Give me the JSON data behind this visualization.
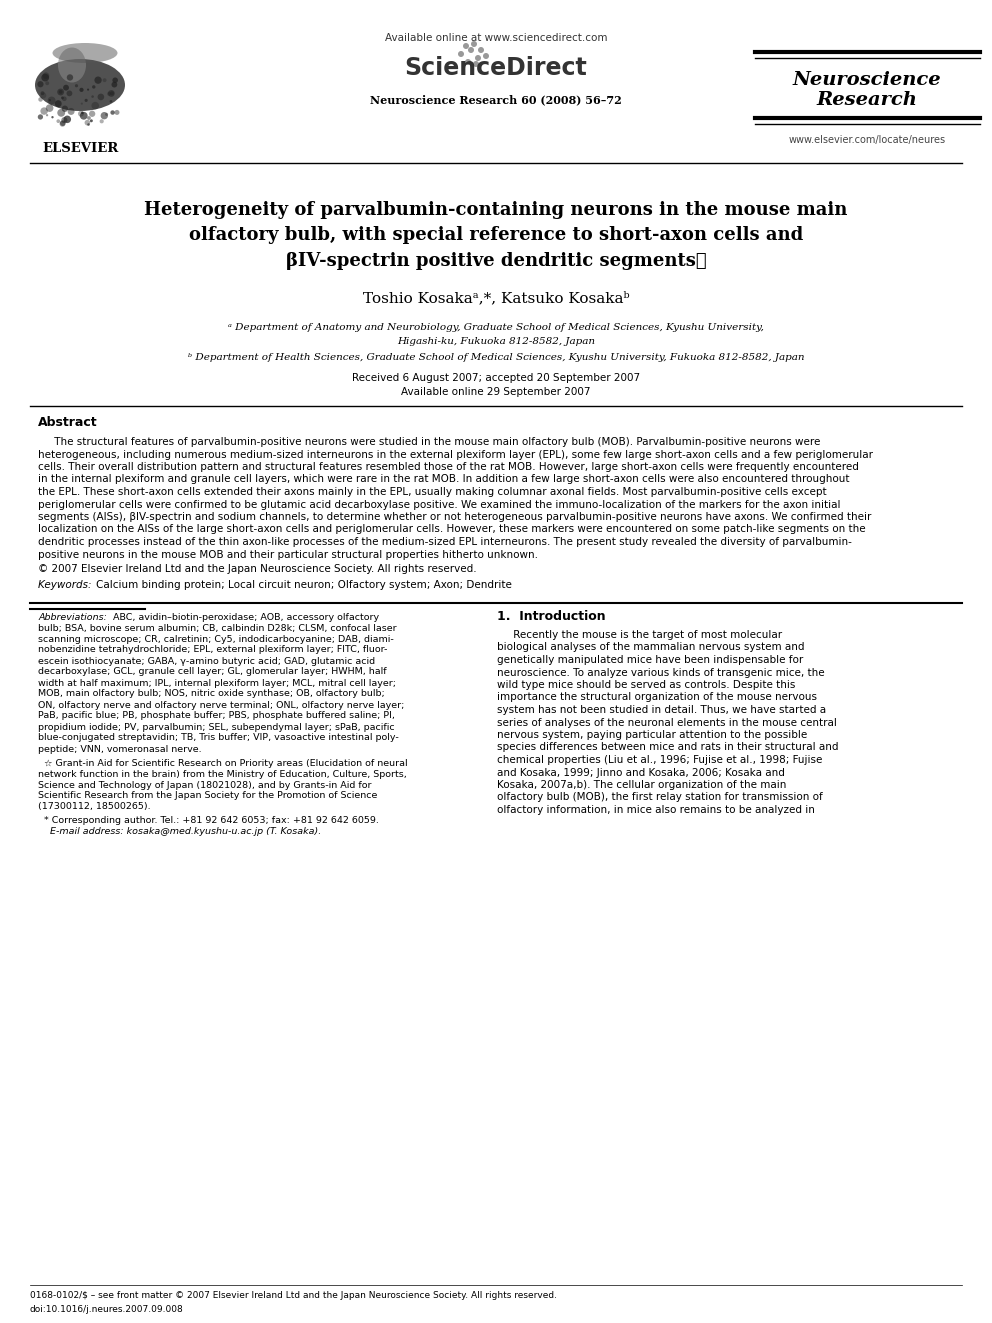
{
  "bg_color": "#ffffff",
  "page_width": 9.92,
  "page_height": 13.23,
  "dpi": 100,
  "header": {
    "available_online_text": "Available online at www.sciencedirect.com",
    "sciencedirect_text": "ScienceDirect",
    "journal_name_line1": "Neuroscience",
    "journal_name_line2": "Research",
    "journal_info": "Neuroscience Research 60 (2008) 56–72",
    "website": "www.elsevier.com/locate/neures",
    "elsevier_text": "ELSEVIER"
  },
  "title_line1": "Heterogeneity of parvalbumin-containing neurons in the mouse main",
  "title_line2": "olfactory bulb, with special reference to short-axon cells and",
  "title_line3": "βIV-spectrin positive dendritic segments☆",
  "author_line": "Toshio Kosakaᵃ,*, Katsuko Kosakaᵇ",
  "affil_a_line1": "ᵃ Department of Anatomy and Neurobiology, Graduate School of Medical Sciences, Kyushu University,",
  "affil_a_line2": "Higashi-ku, Fukuoka 812-8582, Japan",
  "affil_b_line1": "ᵇ Department of Health Sciences, Graduate School of Medical Sciences, Kyushu University, Fukuoka 812-8582, Japan",
  "received_line": "Received 6 August 2007; accepted 20 September 2007",
  "available_line": "Available online 29 September 2007",
  "abstract_title": "Abstract",
  "abstract_body_lines": [
    "     The structural features of parvalbumin-positive neurons were studied in the mouse main olfactory bulb (MOB). Parvalbumin-positive neurons were",
    "heterogeneous, including numerous medium-sized interneurons in the external plexiform layer (EPL), some few large short-axon cells and a few periglomerular",
    "cells. Their overall distribution pattern and structural features resembled those of the rat MOB. However, large short-axon cells were frequently encountered",
    "in the internal plexiform and granule cell layers, which were rare in the rat MOB. In addition a few large short-axon cells were also encountered throughout",
    "the EPL. These short-axon cells extended their axons mainly in the EPL, usually making columnar axonal fields. Most parvalbumin-positive cells except",
    "periglomerular cells were confirmed to be glutamic acid decarboxylase positive. We examined the immuno-localization of the markers for the axon initial",
    "segments (AISs), βIV-spectrin and sodium channels, to determine whether or not heterogeneous parvalbumin-positive neurons have axons. We confirmed their",
    "localization on the AISs of the large short-axon cells and periglomerular cells. However, these markers were encountered on some patch-like segments on the",
    "dendritic processes instead of the thin axon-like processes of the medium-sized EPL interneurons. The present study revealed the diversity of parvalbumin-",
    "positive neurons in the mouse MOB and their particular structural properties hitherto unknown."
  ],
  "copyright_line": "© 2007 Elsevier Ireland Ltd and the Japan Neuroscience Society. All rights reserved.",
  "keywords_line": "Keywords:  Calcium binding protein; Local circuit neuron; Olfactory system; Axon; Dendrite",
  "abbrev_lines": [
    "    Abbreviations:  ABC, avidin–biotin-peroxidase; AOB, accessory olfactory",
    "bulb; BSA, bovine serum albumin; CB, calbindin D28k; CLSM, confocal laser",
    "scanning microscope; CR, calretinin; Cy5, indodicarbocyanine; DAB, diami-",
    "nobenzidine tetrahydrochloride; EPL, external plexiform layer; FITC, fluor-",
    "escein isothiocyanate; GABA, γ-amino butyric acid; GAD, glutamic acid",
    "decarboxylase; GCL, granule cell layer; GL, glomerular layer; HWHM, half",
    "width at half maximum; IPL, internal plexiform layer; MCL, mitral cell layer;",
    "MOB, main olfactory bulb; NOS, nitric oxide synthase; OB, olfactory bulb;",
    "ON, olfactory nerve and olfactory nerve terminal; ONL, olfactory nerve layer;",
    "PaB, pacific blue; PB, phosphate buffer; PBS, phosphate buffered saline; PI,",
    "propidium iodide; PV, parvalbumin; SEL, subependymal layer; sPaB, pacific",
    "blue-conjugated streptavidin; TB, Tris buffer; VIP, vasoactive intestinal poly-",
    "peptide; VNN, vomeronasal nerve."
  ],
  "grant_lines": [
    "  ☆ Grant-in Aid for Scientific Research on Priority areas (Elucidation of neural",
    "network function in the brain) from the Ministry of Education, Culture, Sports,",
    "Science and Technology of Japan (18021028), and by Grants-in Aid for",
    "Scientific Research from the Japan Society for the Promotion of Science",
    "(17300112, 18500265)."
  ],
  "corr_lines": [
    "  * Corresponding author. Tel.: +81 92 642 6053; fax: +81 92 642 6059.",
    "    E-mail address: kosaka@med.kyushu-u.ac.jp (T. Kosaka)."
  ],
  "intro_title": "1.  Introduction",
  "intro_lines": [
    "     Recently the mouse is the target of most molecular",
    "biological analyses of the mammalian nervous system and",
    "genetically manipulated mice have been indispensable for",
    "neuroscience. To analyze various kinds of transgenic mice, the",
    "wild type mice should be served as controls. Despite this",
    "importance the structural organization of the mouse nervous",
    "system has not been studied in detail. Thus, we have started a",
    "series of analyses of the neuronal elements in the mouse central",
    "nervous system, paying particular attention to the possible",
    "species differences between mice and rats in their structural and",
    "chemical properties (Liu et al., 1996; Fujise et al., 1998; Fujise",
    "and Kosaka, 1999; Jinno and Kosaka, 2006; Kosaka and",
    "Kosaka, 2007a,b). The cellular organization of the main",
    "olfactory bulb (MOB), the first relay station for transmission of",
    "olfactory information, in mice also remains to be analyzed in"
  ],
  "bottom_line1": "0168-0102/$ – see front matter © 2007 Elsevier Ireland Ltd and the Japan Neuroscience Society. All rights reserved.",
  "bottom_line2": "doi:10.1016/j.neures.2007.09.008"
}
